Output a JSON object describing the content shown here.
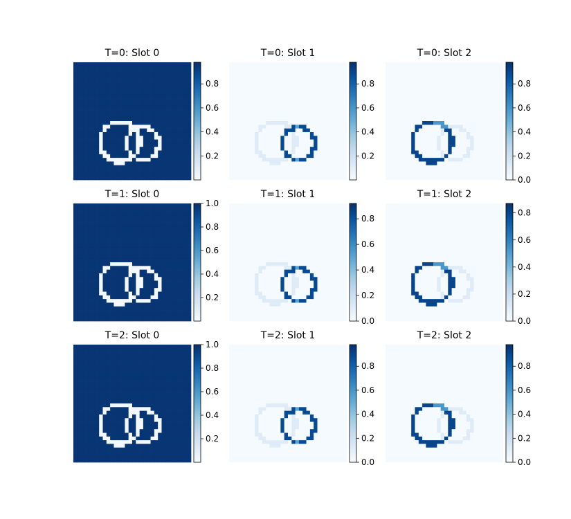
{
  "chart_data": {
    "type": "heatmap",
    "colormap": "Blues",
    "layout": "3 rows x 3 columns of heatmap panels, each with its own vertical colorbar",
    "panels": [
      {
        "row": 0,
        "col": 0,
        "title": "T=0: Slot 0",
        "content": "background",
        "clim": [
          0.0,
          0.98
        ],
        "ticks": [
          0.2,
          0.4,
          0.6,
          0.8
        ]
      },
      {
        "row": 0,
        "col": 1,
        "title": "T=0: Slot 1",
        "content": "ring_right",
        "clim": [
          0.0,
          0.98
        ],
        "ticks": [
          0.2,
          0.4,
          0.6,
          0.8
        ]
      },
      {
        "row": 0,
        "col": 2,
        "title": "T=0: Slot 2",
        "content": "ring_left",
        "clim": [
          0.0,
          0.98
        ],
        "ticks": [
          0.0,
          0.2,
          0.4,
          0.6,
          0.8
        ]
      },
      {
        "row": 1,
        "col": 0,
        "title": "T=1: Slot 0",
        "content": "background",
        "clim": [
          0.0,
          1.0
        ],
        "ticks": [
          0.2,
          0.4,
          0.6,
          0.8,
          1.0
        ]
      },
      {
        "row": 1,
        "col": 1,
        "title": "T=1: Slot 1",
        "content": "ring_right",
        "clim": [
          0.0,
          0.92
        ],
        "ticks": [
          0.0,
          0.2,
          0.4,
          0.6,
          0.8
        ]
      },
      {
        "row": 1,
        "col": 2,
        "title": "T=1: Slot 2",
        "content": "ring_left",
        "clim": [
          0.0,
          0.87
        ],
        "ticks": [
          0.0,
          0.2,
          0.4,
          0.6,
          0.8
        ]
      },
      {
        "row": 2,
        "col": 0,
        "title": "T=2: Slot 0",
        "content": "background",
        "clim": [
          0.0,
          1.0
        ],
        "ticks": [
          0.2,
          0.4,
          0.6,
          0.8,
          1.0
        ]
      },
      {
        "row": 2,
        "col": 1,
        "title": "T=2: Slot 1",
        "content": "ring_right",
        "clim": [
          0.0,
          0.98
        ],
        "ticks": [
          0.0,
          0.2,
          0.4,
          0.6,
          0.8
        ]
      },
      {
        "row": 2,
        "col": 2,
        "title": "T=2: Slot 2",
        "content": "ring_left",
        "clim": [
          0.0,
          0.98
        ],
        "ticks": [
          0.0,
          0.2,
          0.4,
          0.6,
          0.8
        ]
      }
    ]
  }
}
